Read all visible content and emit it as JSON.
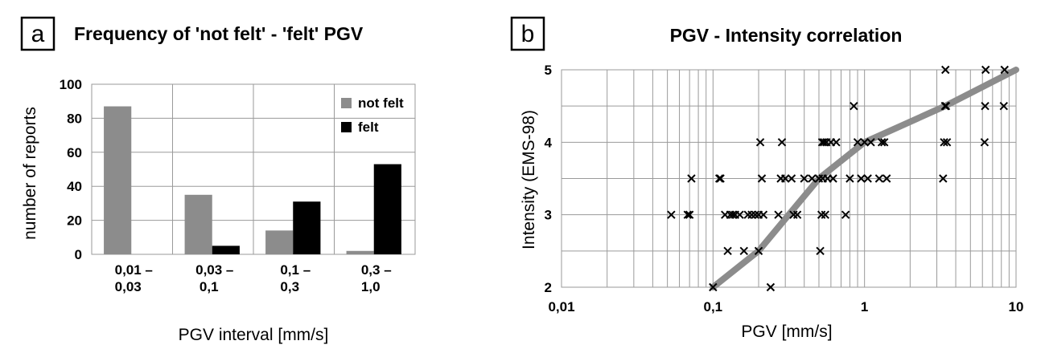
{
  "chart_data": [
    {
      "panel_letter": "a",
      "type": "bar",
      "title": "Frequency of 'not felt' - 'felt' PGV",
      "xlabel": "PGV interval [mm/s]",
      "ylabel": "number of reports",
      "ylim": [
        0,
        100
      ],
      "yticks": [
        "0",
        "20",
        "40",
        "60",
        "80",
        "100"
      ],
      "categories": [
        {
          "line1": "0,01 –",
          "line2": "0,03"
        },
        {
          "line1": "0,03 –",
          "line2": "0,1"
        },
        {
          "line1": "0,1 –",
          "line2": "0,3"
        },
        {
          "line1": "0,3 –",
          "line2": "1,0"
        }
      ],
      "series": [
        {
          "name": "not felt",
          "color": "#8c8c8c",
          "values": [
            87,
            35,
            14,
            2
          ]
        },
        {
          "name": "felt",
          "color": "#000000",
          "values": [
            0,
            5,
            31,
            53
          ]
        }
      ],
      "grid": true,
      "legend": "top-right"
    },
    {
      "panel_letter": "b",
      "type": "scatter",
      "title": "PGV - Intensity correlation",
      "xlabel": "PGV [mm/s]",
      "ylabel": "Intensity (EMS-98)",
      "xscale": "log",
      "xlim": [
        0.01,
        10
      ],
      "ylim": [
        2,
        5
      ],
      "xticks": [
        "0,01",
        "0,1",
        "1",
        "10"
      ],
      "yticks": [
        "2",
        "3",
        "4",
        "5"
      ],
      "grid": true,
      "points": [
        [
          0.053,
          3
        ],
        [
          0.068,
          3
        ],
        [
          0.07,
          3
        ],
        [
          0.072,
          3.5
        ],
        [
          0.1,
          2
        ],
        [
          0.11,
          3.5
        ],
        [
          0.112,
          3.5
        ],
        [
          0.12,
          3
        ],
        [
          0.125,
          2.5
        ],
        [
          0.13,
          3
        ],
        [
          0.135,
          3
        ],
        [
          0.14,
          3
        ],
        [
          0.15,
          3
        ],
        [
          0.16,
          2.5
        ],
        [
          0.17,
          3
        ],
        [
          0.18,
          3
        ],
        [
          0.19,
          3
        ],
        [
          0.2,
          2.5
        ],
        [
          0.2,
          3
        ],
        [
          0.205,
          4
        ],
        [
          0.21,
          3.5
        ],
        [
          0.215,
          3
        ],
        [
          0.24,
          2
        ],
        [
          0.27,
          3
        ],
        [
          0.28,
          3.5
        ],
        [
          0.285,
          4
        ],
        [
          0.3,
          3.5
        ],
        [
          0.33,
          3.5
        ],
        [
          0.34,
          3
        ],
        [
          0.36,
          3
        ],
        [
          0.4,
          3.5
        ],
        [
          0.45,
          3.5
        ],
        [
          0.5,
          3.5
        ],
        [
          0.51,
          2.5
        ],
        [
          0.52,
          3
        ],
        [
          0.525,
          4
        ],
        [
          0.53,
          3.5
        ],
        [
          0.54,
          4
        ],
        [
          0.55,
          3
        ],
        [
          0.56,
          4
        ],
        [
          0.57,
          3.5
        ],
        [
          0.6,
          4
        ],
        [
          0.62,
          3.5
        ],
        [
          0.65,
          4
        ],
        [
          0.75,
          3
        ],
        [
          0.8,
          3.5
        ],
        [
          0.85,
          4.5
        ],
        [
          0.9,
          4
        ],
        [
          0.95,
          3.5
        ],
        [
          1.0,
          4
        ],
        [
          1.05,
          3.5
        ],
        [
          1.1,
          4
        ],
        [
          1.25,
          3.5
        ],
        [
          1.3,
          4
        ],
        [
          1.35,
          4
        ],
        [
          1.4,
          3.5
        ],
        [
          3.3,
          3.5
        ],
        [
          3.35,
          4
        ],
        [
          3.4,
          4.5
        ],
        [
          3.42,
          5
        ],
        [
          3.45,
          4.5
        ],
        [
          3.5,
          4
        ],
        [
          6.2,
          4
        ],
        [
          6.25,
          4.5
        ],
        [
          6.3,
          5
        ],
        [
          8.3,
          4.5
        ],
        [
          8.4,
          5
        ]
      ],
      "trend_line": {
        "color": "#8c8c8c",
        "points": [
          [
            0.1,
            2
          ],
          [
            0.2,
            2.5
          ],
          [
            0.5,
            3.5
          ],
          [
            1.0,
            4
          ],
          [
            3.4,
            4.5
          ],
          [
            10,
            5
          ]
        ]
      }
    }
  ]
}
